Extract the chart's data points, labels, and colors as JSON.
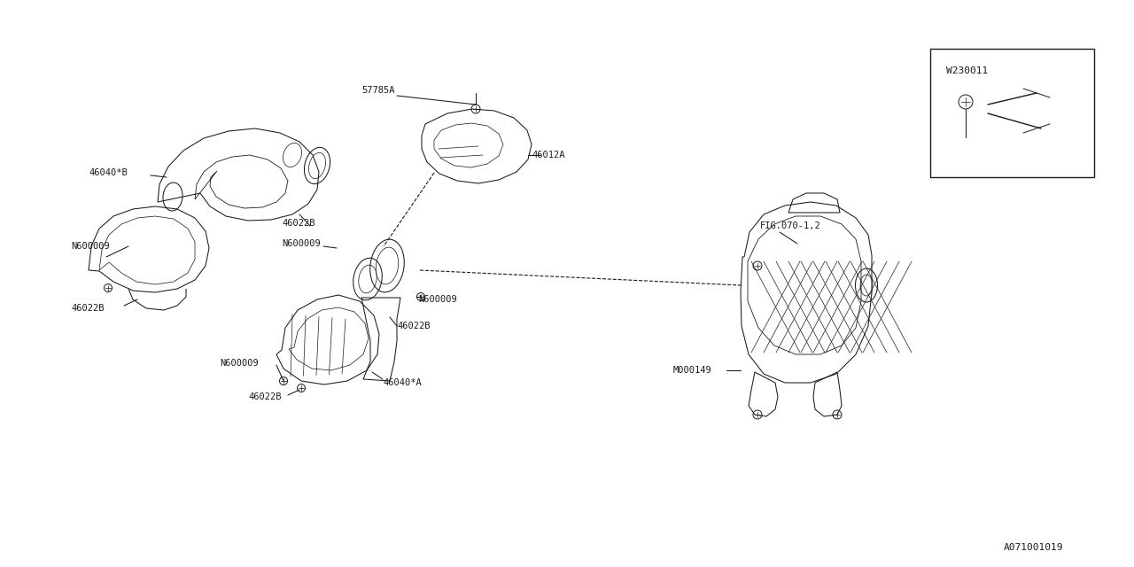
{
  "bg_color": "#ffffff",
  "line_color": "#1a1a1a",
  "text_color": "#1a1a1a",
  "fig_width": 12.8,
  "fig_height": 6.4,
  "diagram_id": "A071001019",
  "inset_label": "W230011",
  "ref_label": "FIG.070-1,2",
  "font_size": 7.5,
  "lw": 0.75
}
